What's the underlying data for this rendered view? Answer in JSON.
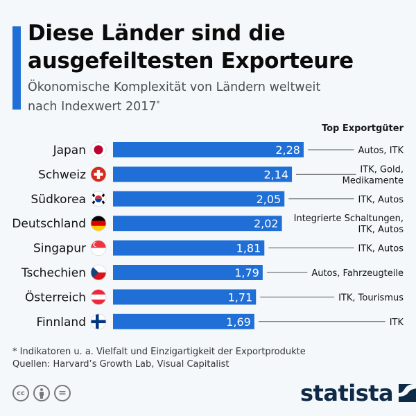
{
  "header": {
    "title_line1": "Diese Länder sind die",
    "title_line2": "ausgefeiltesten Exporteure",
    "subtitle_line1": "Ökonomische Komplexität von Ländern weltweit",
    "subtitle_line2": "nach Indexwert 2017",
    "subtitle_marker": "*"
  },
  "column_header": "Top Exportgüter",
  "colors": {
    "bar": "#1f6fd6",
    "accent": "#1f6fd6",
    "connector": "#555555",
    "logo": "#0e2a47"
  },
  "chart_data": {
    "type": "bar",
    "orientation": "horizontal",
    "title": "Diese Länder sind die ausgefeiltesten Exporteure",
    "subtitle": "Ökonomische Komplexität von Ländern weltweit nach Indexwert 2017*",
    "xlabel": "",
    "ylabel": "",
    "xlim": [
      0,
      2.28
    ],
    "grid": false,
    "categories": [
      "Japan",
      "Schweiz",
      "Südkorea",
      "Deutschland",
      "Singapur",
      "Tschechien",
      "Österreich",
      "Finnland"
    ],
    "values": [
      2.28,
      2.14,
      2.05,
      2.02,
      1.81,
      1.79,
      1.71,
      1.69
    ],
    "value_labels": [
      "2,28",
      "2,14",
      "2,05",
      "2,02",
      "1,81",
      "1,79",
      "1,71",
      "1,69"
    ],
    "flags": [
      "japan-flag",
      "switzerland-flag",
      "south-korea-flag",
      "germany-flag",
      "singapore-flag",
      "czech-flag",
      "austria-flag",
      "finland-flag"
    ],
    "annotations": [
      [
        "Autos, ITK"
      ],
      [
        "ITK, Gold,",
        "Medikamente"
      ],
      [
        "ITK, Autos"
      ],
      [
        "Integrierte Schaltungen,",
        "ITK, Autos"
      ],
      [
        "ITK, Autos"
      ],
      [
        "Autos, Fahrzeugteile"
      ],
      [
        "ITK, Tourismus"
      ],
      [
        "ITK"
      ]
    ],
    "annotation_header": "Top Exportgüter"
  },
  "footer": {
    "note": "* Indikatoren u. a. Vielfalt und Einzigartigkeit der Exportprodukte",
    "sources": "Quellen: Harvard’s Growth Lab, Visual Capitalist",
    "license_icons": [
      "cc-icon",
      "by-icon",
      "nd-icon"
    ],
    "cc_label": "cc",
    "nd_label": "=",
    "logo": "statista"
  }
}
